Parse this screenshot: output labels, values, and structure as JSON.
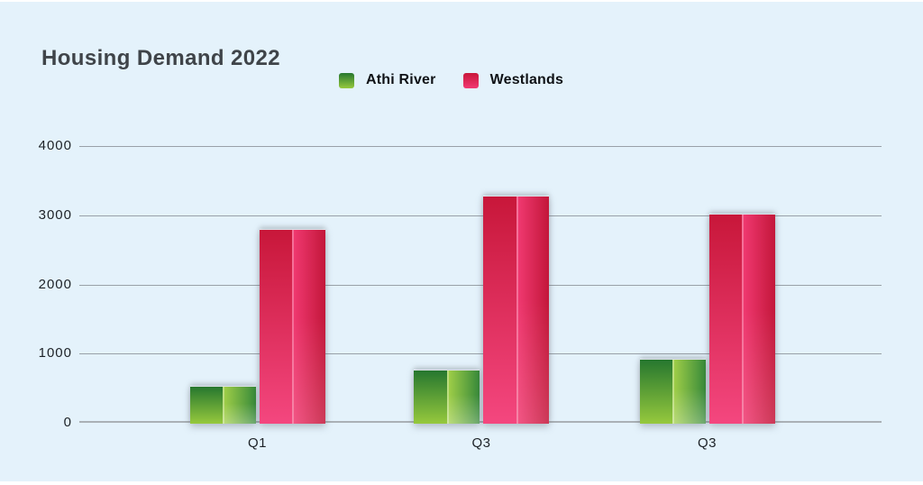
{
  "title": "Housing Demand 2022",
  "legend": [
    {
      "label": "Athi River",
      "color": "#56a63c"
    },
    {
      "label": "Westlands",
      "color": "#e02458"
    }
  ],
  "chart_data": {
    "type": "bar",
    "title": "Housing Demand 2022",
    "categories": [
      "Q1",
      "Q3",
      "Q3"
    ],
    "series": [
      {
        "name": "Athi River",
        "values": [
          530,
          770,
          920
        ]
      },
      {
        "name": "Westlands",
        "values": [
          2800,
          3280,
          3020
        ]
      }
    ],
    "xlabel": "",
    "ylabel": "",
    "ylim": [
      0,
      4000
    ],
    "yticks": [
      0,
      1000,
      2000,
      3000,
      4000
    ],
    "grid": true,
    "legend_position": "top-center"
  },
  "colors": {
    "bg": "#e4f2fb",
    "title": "#3f4449",
    "text": "#1d2227",
    "grid": "#99a1a8",
    "grid_strong": "#aab1b6",
    "green_dark": "#26772f",
    "green_light": "#96c93d",
    "green_bright": "#a4d148",
    "green_edge": "#37893a",
    "pink_dark": "#c8173a",
    "pink_light": "#f4477f",
    "pink_bright": "#f23a73",
    "pink_edge": "#c3173a"
  }
}
